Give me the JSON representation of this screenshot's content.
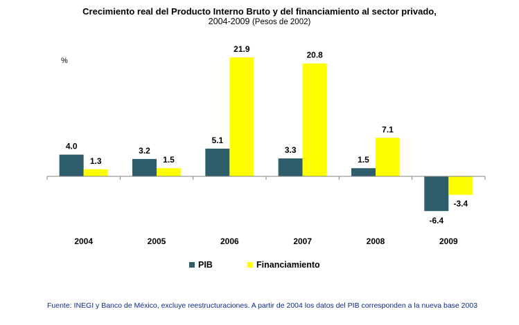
{
  "title_line1": "Crecimiento real del Producto Interno Bruto y del financiamiento al sector privado,",
  "title_line2_main": "2004-2009",
  "title_line2_paren": "(Pesos de 2002)",
  "ylabel": "%",
  "colors": {
    "pib": "#2e5e6b",
    "financiamiento": "#ffff00",
    "axis": "#808080",
    "source_text": "#0b2a8f"
  },
  "chart_data": {
    "type": "bar",
    "categories": [
      "2004",
      "2005",
      "2006",
      "2007",
      "2008",
      "2009"
    ],
    "series": [
      {
        "name": "PIB",
        "values": [
          4.0,
          3.2,
          5.1,
          3.3,
          1.5,
          -6.4
        ]
      },
      {
        "name": "Financiamiento",
        "values": [
          1.3,
          1.5,
          21.9,
          20.8,
          7.1,
          -3.4
        ]
      }
    ],
    "value_labels": {
      "PIB": [
        "4.0",
        "3.2",
        "5.1",
        "3.3",
        "1.5",
        "-6.4"
      ],
      "Financiamiento": [
        "1.3",
        "1.5",
        "21.9",
        "20.8",
        "7.1",
        "-3.4"
      ]
    },
    "ylim": [
      -6.4,
      21.9
    ],
    "grid": false,
    "legend_position": "bottom"
  },
  "source": "Fuente: INEGI y Banco de México, excluye reestructuraciones. A partir de 2004 los datos del PIB corresponden a la nueva base 2003"
}
